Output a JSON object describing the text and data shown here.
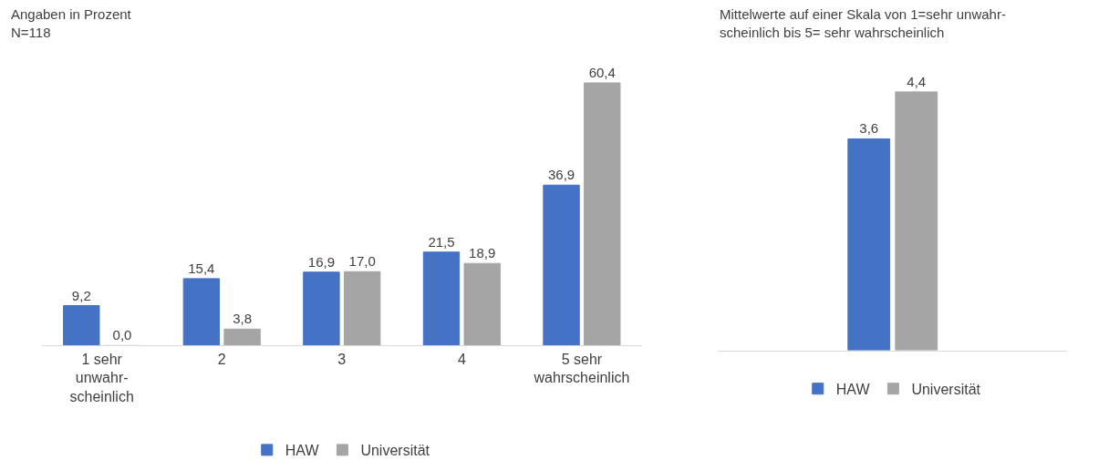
{
  "chart_data": [
    {
      "type": "bar",
      "title": "Angaben in Prozent",
      "subtitle": "N=118",
      "categories": [
        "1 sehr\nunwahr-\nscheinlich",
        "2",
        "3",
        "4",
        "5 sehr\nwahrscheinlich"
      ],
      "series": [
        {
          "name": "HAW",
          "color": "#4472c4",
          "values": [
            9.2,
            15.4,
            16.9,
            21.5,
            36.9
          ],
          "value_labels": [
            "9,2",
            "15,4",
            "16,9",
            "21,5",
            "36,9"
          ]
        },
        {
          "name": "Universität",
          "color": "#a5a5a5",
          "values": [
            0.0,
            3.8,
            17.0,
            18.9,
            60.4
          ],
          "value_labels": [
            "0,0",
            "3,8",
            "17,0",
            "18,9",
            "60,4"
          ]
        }
      ],
      "legend": "bottom",
      "tick_labels": "x"
    },
    {
      "type": "bar",
      "title": "Mittelwerte auf einer Skala von 1=sehr unwahr-\nscheinlich bis 5= sehr wahrscheinlich",
      "categories": [
        null
      ],
      "series": [
        {
          "name": "HAW",
          "color": "#4472c4",
          "values": [
            3.6
          ],
          "value_labels": [
            "3,6"
          ]
        },
        {
          "name": "Universität",
          "color": "#a5a5a5",
          "values": [
            4.4
          ],
          "value_labels": [
            "4,4"
          ]
        }
      ],
      "legend": "bottom",
      "tick_labels": false
    }
  ]
}
